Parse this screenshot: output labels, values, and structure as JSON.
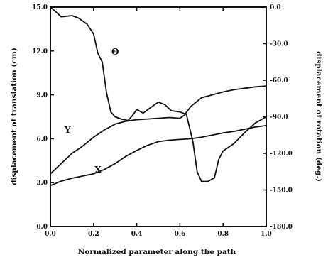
{
  "chart_data": {
    "type": "line",
    "xlabel": "Normalized parameter along the path",
    "ylabel_left": "displacement of translation (cm)",
    "ylabel_right": "displacement of rotation (deg.)",
    "xlim": [
      0.0,
      1.0
    ],
    "ylim_left": [
      0.0,
      15.0
    ],
    "ylim_right": [
      -180.0,
      0.0
    ],
    "x_ticks": [
      {
        "value": 0.0,
        "label": "0.0"
      },
      {
        "value": 0.2,
        "label": "0.2"
      },
      {
        "value": 0.4,
        "label": "0.4"
      },
      {
        "value": 0.6,
        "label": "0.6"
      },
      {
        "value": 0.8,
        "label": "0.8"
      },
      {
        "value": 1.0,
        "label": "1.0"
      }
    ],
    "y_left_ticks": [
      {
        "value": 0.0,
        "label": "0.0"
      },
      {
        "value": 3.0,
        "label": "3.0"
      },
      {
        "value": 6.0,
        "label": "6.0"
      },
      {
        "value": 9.0,
        "label": "9.0"
      },
      {
        "value": 12.0,
        "label": "12.0"
      },
      {
        "value": 15.0,
        "label": "15.0"
      }
    ],
    "y_right_ticks": [
      {
        "value": 0.0,
        "label": "0.0"
      },
      {
        "value": -30.0,
        "label": "-30.0"
      },
      {
        "value": -60.0,
        "label": "-60.0"
      },
      {
        "value": -90.0,
        "label": "-90.0"
      },
      {
        "value": -120.0,
        "label": "-120.0"
      },
      {
        "value": -150.0,
        "label": "-150.0"
      },
      {
        "value": -180.0,
        "label": "-180.0"
      }
    ],
    "grid": false,
    "legend": "none",
    "series": [
      {
        "name": "X",
        "axis": "left",
        "label_at": [
          0.22,
          3.7
        ],
        "x": [
          0.0,
          0.05,
          0.1,
          0.15,
          0.2,
          0.25,
          0.3,
          0.35,
          0.4,
          0.45,
          0.5,
          0.55,
          0.6,
          0.65,
          0.7,
          0.75,
          0.8,
          0.85,
          0.9,
          0.95,
          1.0
        ],
        "values": [
          2.8,
          3.1,
          3.3,
          3.45,
          3.6,
          3.9,
          4.3,
          4.8,
          5.2,
          5.55,
          5.8,
          5.9,
          5.95,
          6.0,
          6.1,
          6.25,
          6.4,
          6.5,
          6.65,
          6.8,
          6.9
        ]
      },
      {
        "name": "Y",
        "axis": "left",
        "label_at": [
          0.08,
          6.4
        ],
        "x": [
          0.0,
          0.05,
          0.1,
          0.15,
          0.2,
          0.25,
          0.3,
          0.35,
          0.4,
          0.45,
          0.5,
          0.55,
          0.6,
          0.62,
          0.65,
          0.7,
          0.75,
          0.8,
          0.85,
          0.9,
          0.95,
          1.0
        ],
        "values": [
          3.6,
          4.3,
          5.0,
          5.5,
          6.1,
          6.6,
          7.0,
          7.2,
          7.3,
          7.35,
          7.4,
          7.45,
          7.4,
          7.6,
          8.2,
          8.8,
          9.0,
          9.2,
          9.35,
          9.45,
          9.55,
          9.6
        ]
      },
      {
        "name": "Θ",
        "axis": "right",
        "label_at": [
          0.3,
          -39.0
        ],
        "x": [
          0.0,
          0.02,
          0.05,
          0.1,
          0.13,
          0.17,
          0.2,
          0.22,
          0.24,
          0.26,
          0.28,
          0.3,
          0.33,
          0.36,
          0.38,
          0.4,
          0.43,
          0.46,
          0.5,
          0.53,
          0.56,
          0.6,
          0.63,
          0.66,
          0.68,
          0.7,
          0.73,
          0.76,
          0.78,
          0.8,
          0.85,
          0.9,
          0.95,
          1.0
        ],
        "values": [
          0.0,
          -3.0,
          -8.0,
          -7.0,
          -9.0,
          -14.0,
          -22.0,
          -38.0,
          -45.0,
          -70.0,
          -86.0,
          -90.0,
          -92.0,
          -93.0,
          -89.0,
          -84.0,
          -87.0,
          -83.0,
          -78.0,
          -80.0,
          -85.0,
          -86.0,
          -88.0,
          -110.0,
          -135.0,
          -143.0,
          -143.0,
          -140.0,
          -125.0,
          -118.0,
          -112.0,
          -103.0,
          -95.0,
          -90.0
        ]
      }
    ]
  }
}
